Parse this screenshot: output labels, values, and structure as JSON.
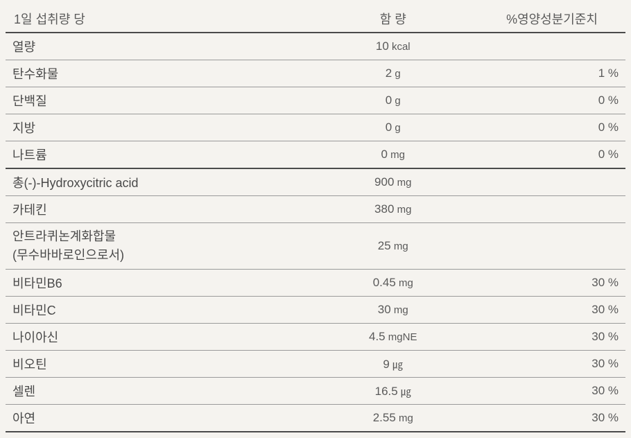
{
  "table": {
    "headers": {
      "name": "1일 섭취량 당",
      "amount": "함   량",
      "dv": "%영양성분기준치"
    },
    "columns": {
      "name_width": "50%",
      "amount_width": "25%",
      "dv_width": "25%"
    },
    "colors": {
      "background": "#f5f3ef",
      "text_primary": "#4a4a4a",
      "text_secondary": "#5a5a5a",
      "border_thin": "#9a9a9a",
      "border_thick": "#4a4a4a"
    },
    "typography": {
      "font_family": "Malgun Gothic",
      "header_fontsize": 18,
      "name_fontsize": 18,
      "value_fontsize": 17,
      "unit_fontsize": 15
    },
    "rows": [
      {
        "name": "열량",
        "amount_value": "10",
        "amount_unit": " kcal",
        "dv": "",
        "border": "thin"
      },
      {
        "name": "탄수화물",
        "amount_value": "2",
        "amount_unit": " g",
        "dv": "1 %",
        "border": "thin"
      },
      {
        "name": "단백질",
        "amount_value": "0",
        "amount_unit": " g",
        "dv": "0 %",
        "border": "thin"
      },
      {
        "name": "지방",
        "amount_value": "0",
        "amount_unit": " g",
        "dv": "0 %",
        "border": "thin"
      },
      {
        "name": "나트륨",
        "amount_value": "0",
        "amount_unit": " mg",
        "dv": "0 %",
        "border": "thick"
      },
      {
        "name": "총(-)-Hydroxycitric acid",
        "amount_value": "900",
        "amount_unit": " mg",
        "dv": "",
        "border": "thin"
      },
      {
        "name": "카테킨",
        "amount_value": "380",
        "amount_unit": " mg",
        "dv": "",
        "border": "thin"
      },
      {
        "name": "안트라퀴논계화합물\n(무수바바로인으로서)",
        "amount_value": "25",
        "amount_unit": " mg",
        "dv": "",
        "border": "thin",
        "multiline": true
      },
      {
        "name": "비타민B6",
        "amount_value": "0.45",
        "amount_unit": " mg",
        "dv": "30 %",
        "border": "thin"
      },
      {
        "name": "비타민C",
        "amount_value": "30",
        "amount_unit": " mg",
        "dv": "30 %",
        "border": "thin"
      },
      {
        "name": "나이아신",
        "amount_value": "4.5",
        "amount_unit": " mgNE",
        "dv": "30 %",
        "border": "thin"
      },
      {
        "name": "비오틴",
        "amount_value": "9",
        "amount_unit": " ㎍",
        "dv": "30 %",
        "border": "thin"
      },
      {
        "name": "셀렌",
        "amount_value": "16.5",
        "amount_unit": " ㎍",
        "dv": "30 %",
        "border": "thin"
      },
      {
        "name": "아연",
        "amount_value": "2.55",
        "amount_unit": " mg",
        "dv": "30 %",
        "border": "thick"
      }
    ]
  }
}
